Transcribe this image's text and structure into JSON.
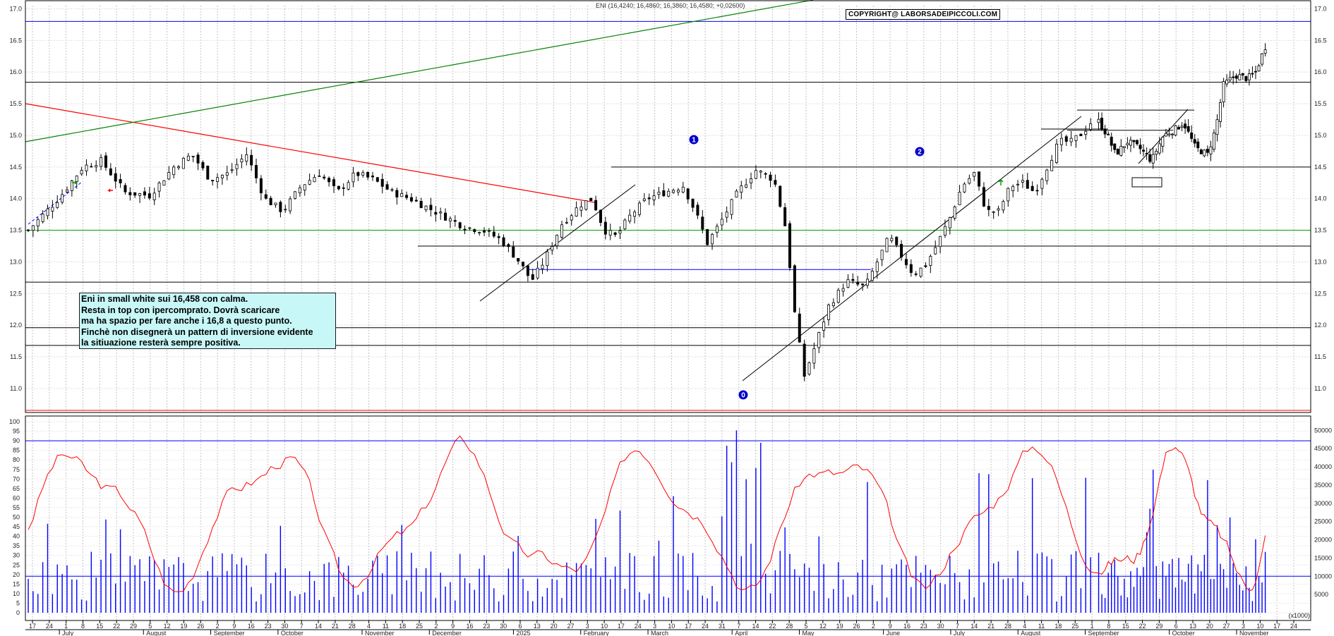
{
  "title": "ENI (16,4240; 16,4860; 16,3860; 16,4580; +0,02600)",
  "copyright": "COPYRIGHT@ LABORSADEIPICCOLI.COM",
  "note_lines": [
    "Eni in small white sui 16,458 con calma.",
    "Resta in top con ipercomprato. Dovrà scaricare",
    "ma ha spazio per fare anche i 16,8 a questo punto.",
    "Finchè non disegnerà un pattern di inversione evidente",
    "la sitiuazione resterà sempre positiva."
  ],
  "wave_labels": [
    "0",
    "1",
    "2"
  ],
  "colors": {
    "up_candle": "#ffffff",
    "down_candle": "#000000",
    "oscillator": "#ff0000",
    "volume": "#0000ff",
    "trend_red": "#ff0000",
    "trend_green": "#008000",
    "level_blue": "#0000ff",
    "level_green": "#00a000",
    "note_bg": "#c8f7f7"
  },
  "chart_data": [
    {
      "type": "candlestick",
      "symbol": "ENI",
      "ohlc_last": {
        "open": 16.424,
        "high": 16.486,
        "low": 16.386,
        "close": 16.458,
        "change": 0.026
      },
      "y_ticks": [
        "11.0",
        "11.5",
        "12.0",
        "12.5",
        "13.0",
        "13.5",
        "14.0",
        "14.5",
        "15.0",
        "15.5",
        "16.0",
        "16.5",
        "17.0"
      ],
      "ylim": [
        10.62,
        17.05
      ],
      "grid": true,
      "horizontal_levels": {
        "black": [
          15.84,
          14.5,
          13.25,
          12.68,
          11.96,
          11.68
        ],
        "blue": [
          16.8
        ],
        "green": [
          13.5
        ]
      },
      "key_points": {
        "start_close": 13.5,
        "july_high": 14.7,
        "sept_high": 14.85,
        "dec_low": 12.25,
        "march_high": 14.5,
        "april_low": 11.0,
        "june_high": 14.4,
        "aug_high": 15.3,
        "oct_low": 14.5,
        "last_close": 16.458
      },
      "sessions": 352
    },
    {
      "type": "line+bar",
      "oscillator_ticks": [
        "0",
        "5",
        "10",
        "15",
        "20",
        "25",
        "30",
        "35",
        "40",
        "45",
        "50",
        "55",
        "60",
        "65",
        "70",
        "75",
        "80",
        "85",
        "90",
        "95",
        "100"
      ],
      "oscillator_range": [
        0,
        100
      ],
      "oscillator_level": 90,
      "volume_ticks": [
        "5000",
        "10000",
        "15000",
        "20000",
        "25000",
        "30000",
        "35000",
        "40000",
        "45000",
        "50000"
      ],
      "volume_level": 10000,
      "volume_unit": "(x1000)"
    }
  ],
  "x_axis": {
    "day_ticks": [
      "17",
      "24",
      "1",
      "8",
      "15",
      "22",
      "29",
      "5",
      "12",
      "19",
      "26",
      "2",
      "9",
      "16",
      "23",
      "30",
      "7",
      "14",
      "21",
      "28",
      "4",
      "11",
      "18",
      "25",
      "2",
      "9",
      "16",
      "23",
      "30",
      "6",
      "13",
      "20",
      "27",
      "3",
      "10",
      "17",
      "24",
      "3",
      "10",
      "17",
      "24",
      "31",
      "7",
      "14",
      "22",
      "28",
      "5",
      "12",
      "19",
      "26",
      "2",
      "9",
      "16",
      "23",
      "30",
      "7",
      "14",
      "21",
      "28",
      "4",
      "11",
      "18",
      "25",
      "1",
      "8",
      "15",
      "22",
      "29",
      "6",
      "13",
      "20",
      "27",
      "3",
      "10",
      "17",
      "24"
    ],
    "months": [
      "July",
      "August",
      "September",
      "October",
      "November",
      "December",
      "2025",
      "February",
      "March",
      "April",
      "May",
      "June",
      "July",
      "August",
      "September",
      "October",
      "November"
    ]
  }
}
